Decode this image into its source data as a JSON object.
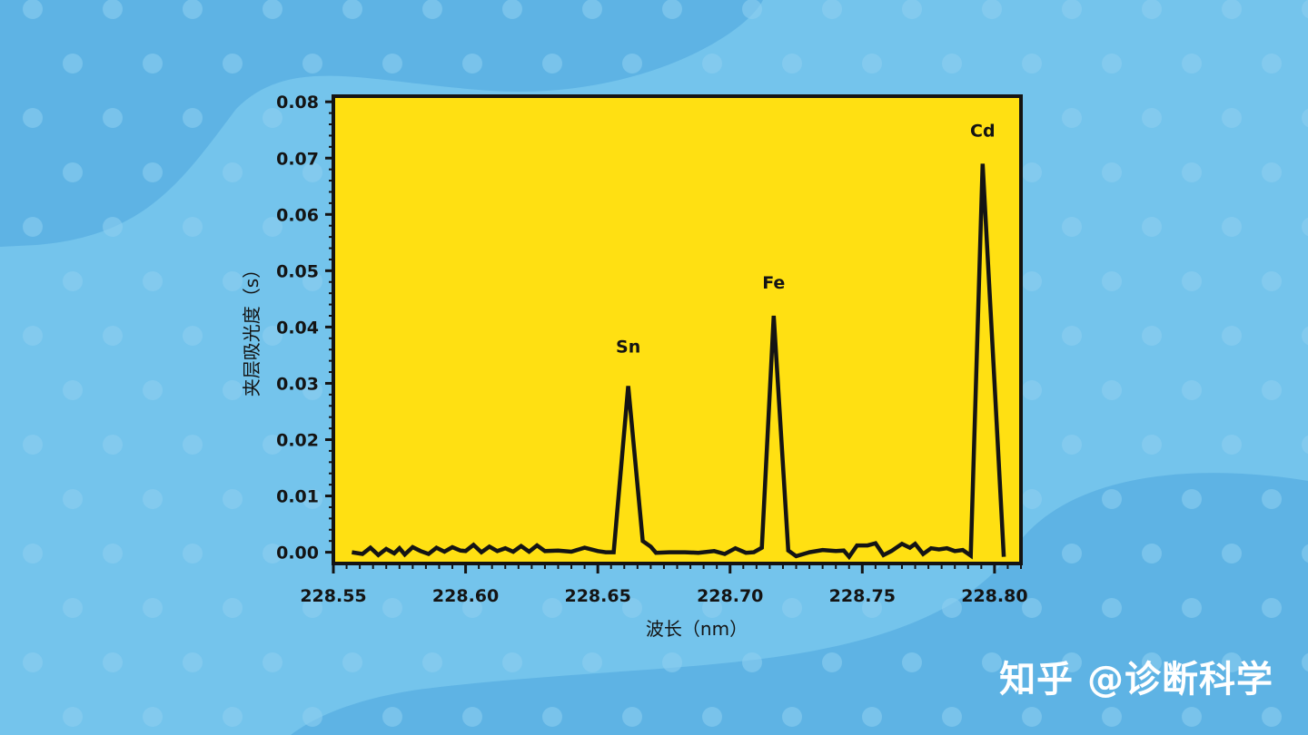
{
  "colors": {
    "background": "#74c4ec",
    "blob": "#5eb3e4",
    "dot": "#8fd0f1",
    "plot_area": "#ffe012",
    "line": "#141414"
  },
  "watermark": "知乎 @诊断科学",
  "chart_data": {
    "type": "line",
    "title": "",
    "xlabel": "波长（nm）",
    "ylabel": "夹层吸光度（s）",
    "xlim": [
      228.55,
      228.81
    ],
    "ylim": [
      -0.002,
      0.081
    ],
    "xticks": [
      228.55,
      228.6,
      228.65,
      228.7,
      228.75,
      228.8
    ],
    "xtick_labels": [
      "228.55",
      "228.60",
      "228.65",
      "228.70",
      "228.75",
      "228.80"
    ],
    "yticks": [
      0.0,
      0.01,
      0.02,
      0.03,
      0.04,
      0.05,
      0.06,
      0.07,
      0.08
    ],
    "ytick_labels": [
      "0.00",
      "0.01",
      "0.02",
      "0.03",
      "0.04",
      "0.05",
      "0.06",
      "0.07",
      "0.08"
    ],
    "grid": false,
    "series": [
      {
        "x": [
          228.557,
          228.561,
          228.564,
          228.567,
          228.57,
          228.573,
          228.575,
          228.577,
          228.58,
          228.583,
          228.586,
          228.589,
          228.592,
          228.595,
          228.598,
          228.6,
          228.603,
          228.606,
          228.609,
          228.612,
          228.615,
          228.618,
          228.621,
          228.624,
          228.627,
          228.63,
          228.635,
          228.64,
          228.645,
          228.65,
          228.653,
          228.656,
          228.6615,
          228.667,
          228.67,
          228.672,
          228.677,
          228.683,
          228.688,
          228.694,
          228.698,
          228.702,
          228.706,
          228.709,
          228.712,
          228.7165,
          228.722,
          228.725,
          228.73,
          228.735,
          228.74,
          228.743,
          228.745,
          228.748,
          228.752,
          228.755,
          228.758,
          228.761,
          228.765,
          228.768,
          228.77,
          228.773,
          228.776,
          228.779,
          228.782,
          228.785,
          228.788,
          228.791,
          228.7955,
          228.8,
          228.8035
        ],
        "y": [
          0.0,
          -0.0003,
          0.0008,
          -0.0005,
          0.0006,
          -0.0002,
          0.0007,
          -0.0004,
          0.0009,
          0.0002,
          -0.0003,
          0.0008,
          0.0001,
          0.0009,
          0.0003,
          0.0002,
          0.0013,
          0.0,
          0.001,
          0.0002,
          0.0007,
          0.0001,
          0.0011,
          0.0001,
          0.0012,
          0.0002,
          0.0003,
          0.0001,
          0.0008,
          0.0002,
          0.0,
          0.0,
          0.0295,
          0.002,
          0.001,
          -0.0001,
          0.0,
          0.0,
          -0.0001,
          0.0002,
          -0.0003,
          0.0007,
          -0.0001,
          0.0,
          0.0008,
          0.042,
          0.0003,
          -0.0007,
          0.0,
          0.0004,
          0.0002,
          0.0003,
          -0.0008,
          0.0012,
          0.0012,
          0.0016,
          -0.0005,
          0.0002,
          0.0015,
          0.0008,
          0.0015,
          -0.0003,
          0.0007,
          0.0005,
          0.0007,
          0.0002,
          0.0004,
          -0.0006,
          0.069,
          0.03,
          -0.0008
        ]
      }
    ],
    "annotations": [
      {
        "text": "Sn",
        "x": 228.6615,
        "y": 0.0355
      },
      {
        "text": "Fe",
        "x": 228.7165,
        "y": 0.0468
      },
      {
        "text": "Cd",
        "x": 228.7955,
        "y": 0.0738
      }
    ]
  }
}
